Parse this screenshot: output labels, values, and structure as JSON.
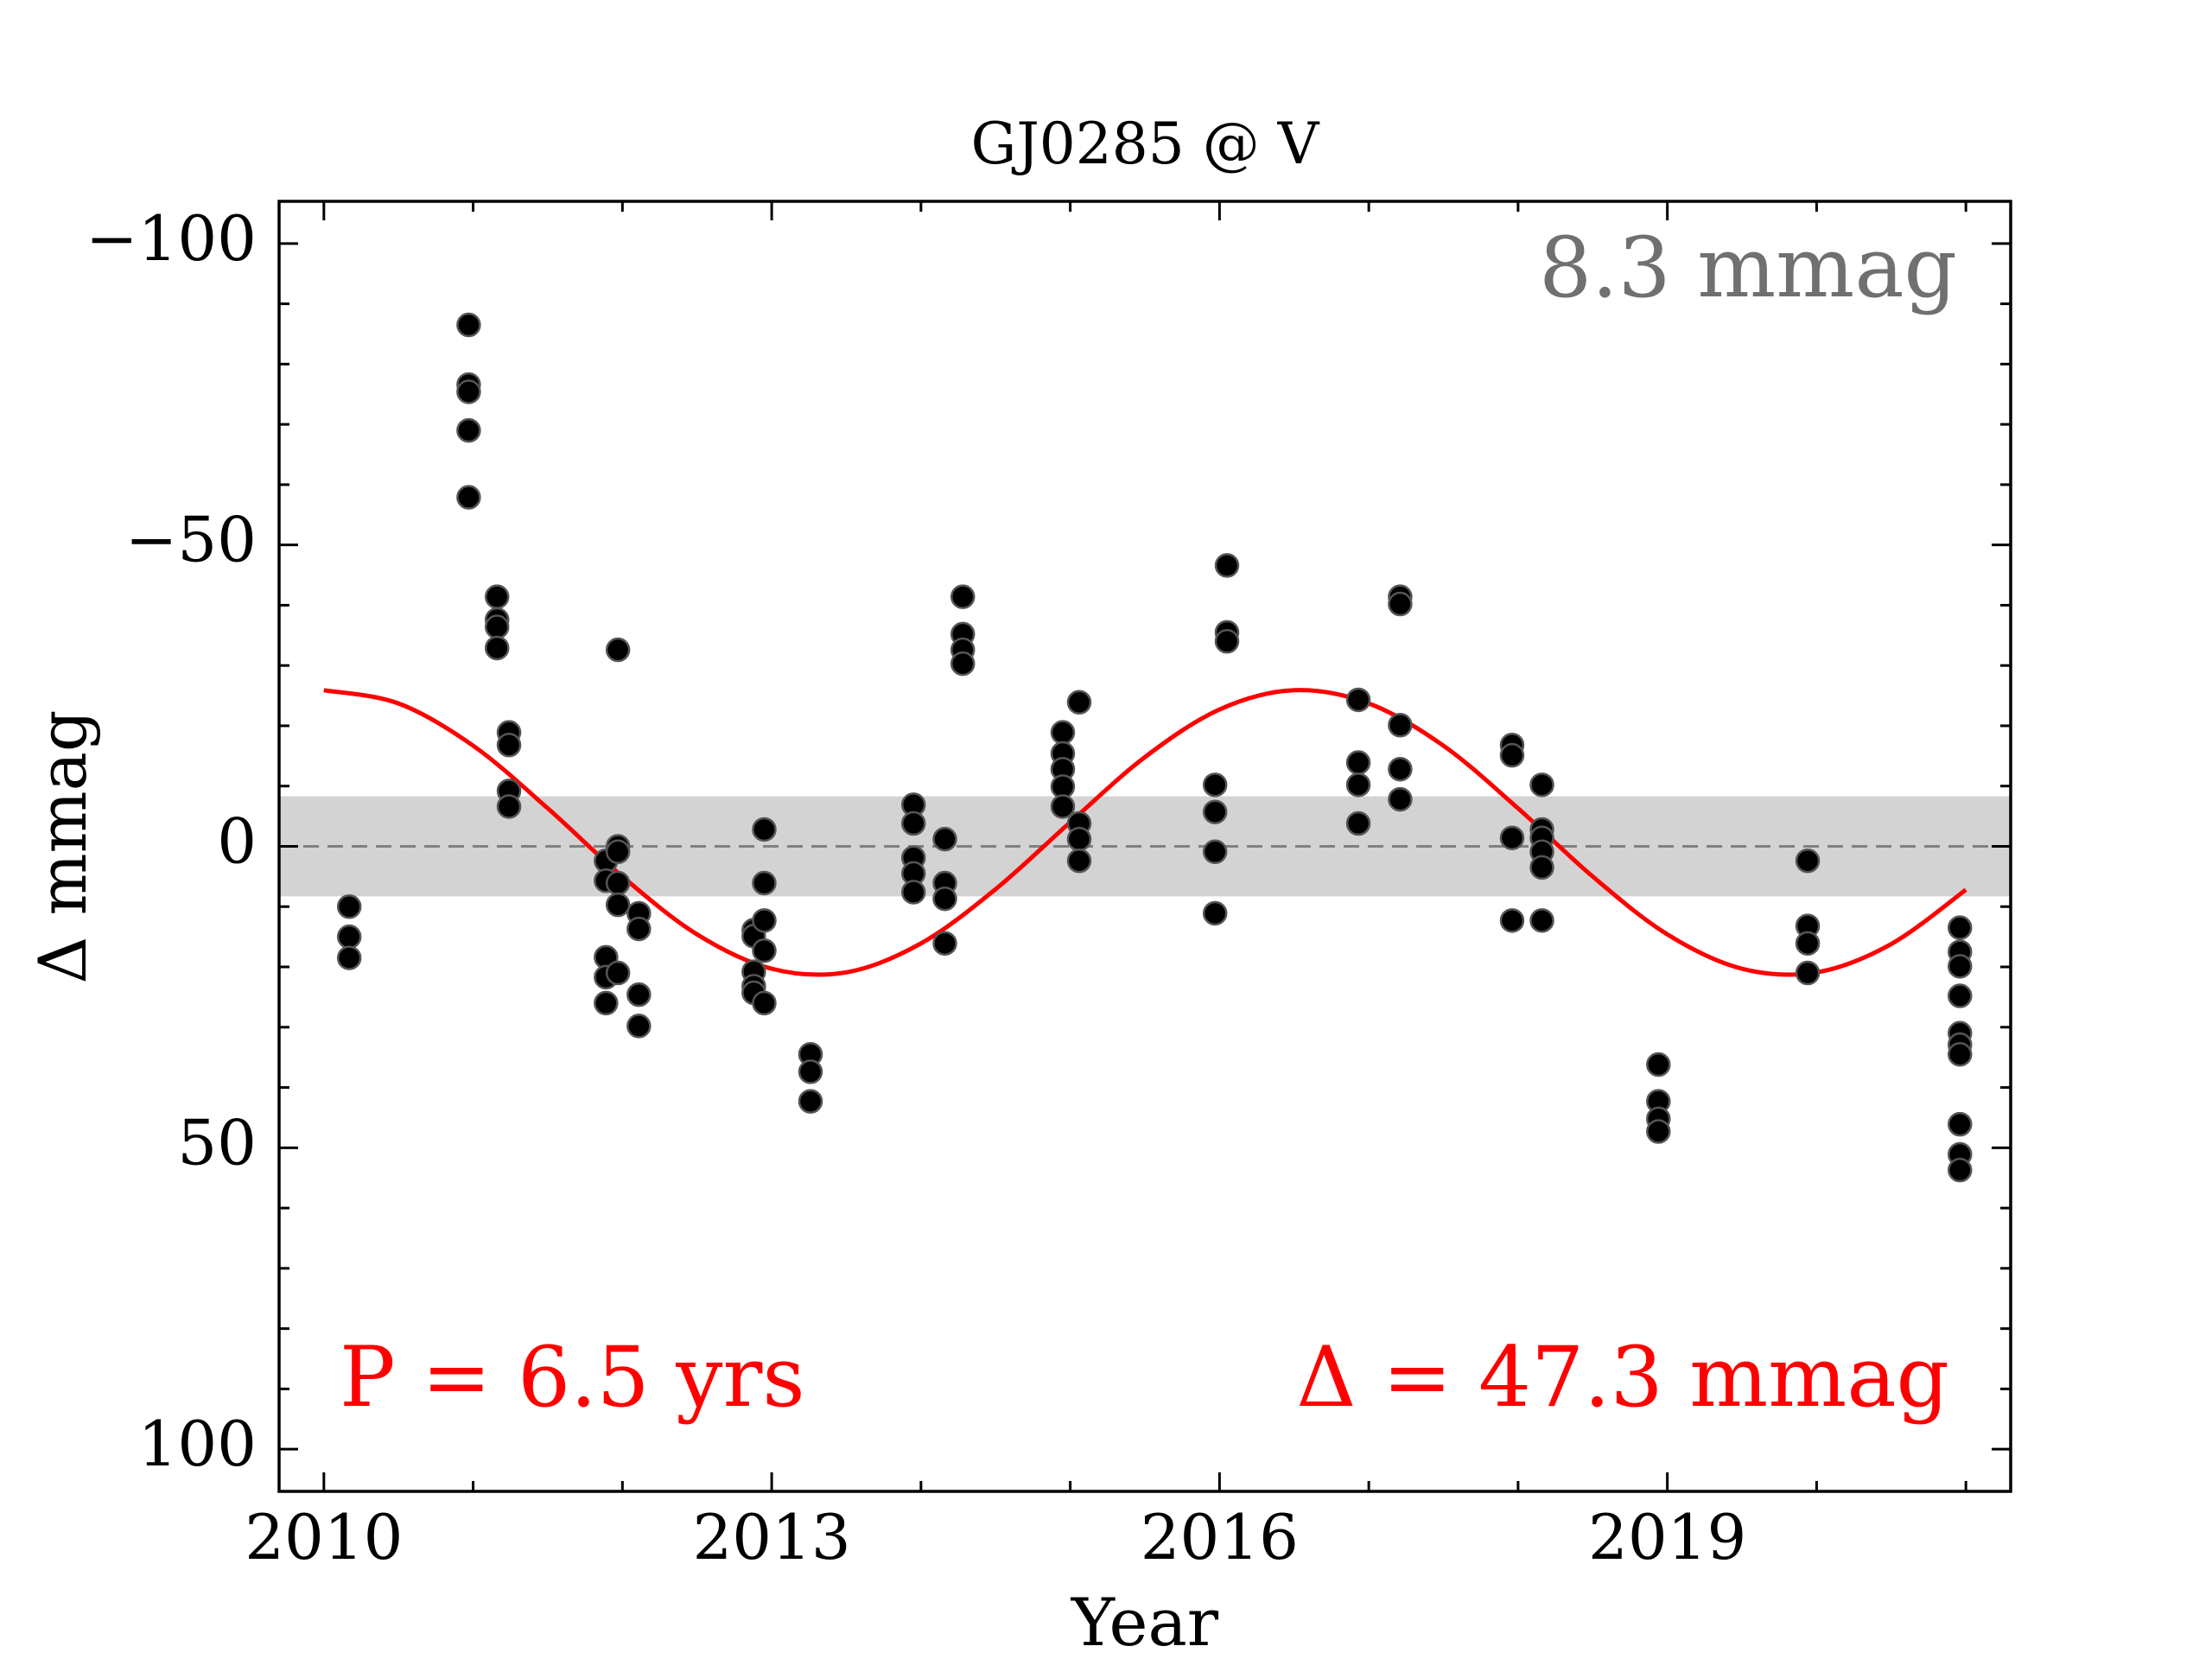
{
  "chart_data": {
    "type": "scatter",
    "title": "GJ0285 @ V",
    "x_label": "Year",
    "y_label": "Δ  mmag",
    "annotations": {
      "scatter": "8.3 mmag",
      "period": "P = 6.5 yrs",
      "amplitude": "Δ = 47.3 mmag"
    },
    "band": 8.3,
    "band_color": "#d3d3d3",
    "xlim": [
      2009.7,
      2021.3
    ],
    "ylim": [
      -107,
      107
    ],
    "y_inverted": true,
    "xticks": [
      2010,
      2013,
      2016,
      2019
    ],
    "xminor": [
      2011,
      2012,
      2014,
      2015,
      2017,
      2018,
      2020,
      2021
    ],
    "yticks": [
      {
        "value": -100,
        "label": "−100"
      },
      {
        "value": -50,
        "label": "−50"
      },
      0,
      50,
      100
    ],
    "yminor": [
      -90,
      -80,
      -70,
      -60,
      -40,
      -30,
      -20,
      -10,
      10,
      20,
      30,
      40,
      60,
      70,
      80,
      90
    ],
    "points": {
      "color": "#000000",
      "x": [
        2010.17,
        2010.17,
        2010.17,
        2010.97,
        2010.97,
        2010.97,
        2010.97,
        2010.97,
        2011.16,
        2011.16,
        2011.16,
        2011.16,
        2011.24,
        2011.24,
        2011.24,
        2011.24,
        2011.89,
        2011.89,
        2011.89,
        2011.89,
        2011.89,
        2011.97,
        2011.97,
        2011.97,
        2011.97,
        2011.97,
        2011.97,
        2012.11,
        2012.11,
        2012.11,
        2012.11,
        2012.88,
        2012.88,
        2012.88,
        2012.88,
        2012.88,
        2012.95,
        2012.95,
        2012.95,
        2012.95,
        2012.95,
        2013.26,
        2013.26,
        2013.26,
        2013.95,
        2013.95,
        2013.95,
        2013.95,
        2013.95,
        2014.16,
        2014.16,
        2014.16,
        2014.16,
        2014.28,
        2014.28,
        2014.28,
        2014.28,
        2014.95,
        2014.95,
        2014.95,
        2014.95,
        2014.95,
        2015.06,
        2015.06,
        2015.06,
        2015.06,
        2015.97,
        2015.97,
        2015.97,
        2015.97,
        2016.05,
        2016.05,
        2016.05,
        2016.93,
        2016.93,
        2016.93,
        2016.93,
        2017.21,
        2017.21,
        2017.21,
        2017.21,
        2017.21,
        2017.96,
        2017.96,
        2017.96,
        2017.96,
        2018.16,
        2018.16,
        2018.16,
        2018.16,
        2018.16,
        2018.16,
        2018.94,
        2018.94,
        2018.94,
        2018.94,
        2019.94,
        2019.94,
        2019.94,
        2019.94,
        2020.96,
        2020.96,
        2020.96,
        2020.96,
        2020.96,
        2020.96,
        2020.96,
        2020.96,
        2020.96,
        2020.96
      ],
      "values": [
        10,
        15,
        18.5,
        -86.5,
        -76.6,
        -75.4,
        -69,
        -57.9,
        -41.4,
        -37.6,
        -36.4,
        -32.9,
        -18.9,
        -16.8,
        -9.2,
        -6.6,
        2.4,
        5.7,
        18.4,
        21.7,
        26,
        -32.6,
        0,
        0.9,
        6.1,
        9.7,
        21,
        11.1,
        13.7,
        24.6,
        29.8,
        13.9,
        14.9,
        20.8,
        23.2,
        24.3,
        -2.8,
        6.1,
        12.3,
        17.3,
        26,
        34.5,
        37.4,
        42.3,
        -6.9,
        -3.8,
        1.9,
        4.5,
        7.6,
        -1.2,
        6.1,
        8.7,
        16.1,
        -41.4,
        -35.2,
        -32.6,
        -30.3,
        -18.9,
        -15.4,
        -12.8,
        -9.9,
        -6.6,
        -23.9,
        -3.8,
        -1.2,
        2.4,
        -10.2,
        -5.7,
        0.9,
        11.1,
        -46.6,
        -35.5,
        -34,
        -24.3,
        -13.9,
        -10.2,
        -3.8,
        -41.4,
        -40.2,
        -20.1,
        -12.8,
        -7.8,
        -16.8,
        -15.1,
        -1.4,
        12.3,
        -10.2,
        -2.8,
        -1.4,
        0.9,
        3.5,
        12.3,
        36.2,
        42.3,
        45.2,
        47.3,
        2.4,
        13.2,
        16.1,
        21,
        13.5,
        17.5,
        19.9,
        24.8,
        31,
        32.9,
        34.5,
        46.1,
        51.1,
        53.7
      ]
    },
    "fit": {
      "color": "#ff0000",
      "x": [
        2010,
        2010.5,
        2011,
        2011.5,
        2012,
        2012.5,
        2013,
        2013.5,
        2014,
        2014.5,
        2015,
        2015.5,
        2016,
        2016.5,
        2017,
        2017.5,
        2018,
        2018.5,
        2019,
        2019.5,
        2020,
        2020.5,
        2021
      ],
      "values": [
        -25.9,
        -23.7,
        -16.7,
        -6.3,
        5.0,
        14.6,
        20.3,
        20.9,
        16.1,
        7.1,
        -4.0,
        -14.8,
        -22.7,
        -25.9,
        -23.7,
        -16.7,
        -6.3,
        5.0,
        14.6,
        20.3,
        20.9,
        16.2,
        7.2
      ]
    }
  }
}
